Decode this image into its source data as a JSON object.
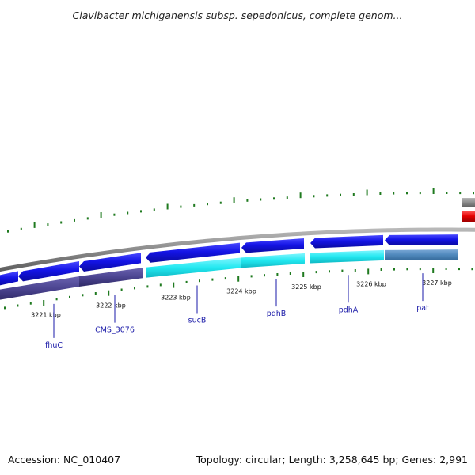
{
  "title": "Clavibacter michiganensis subsp. sepedonicus, complete genom...",
  "footer": {
    "accession": "Accession: NC_010407",
    "summary": "Topology: circular; Length: 3,258,645 bp; Genes: 2,991"
  },
  "colors": {
    "forward_gene": "#1414e6",
    "reverse_highlight": "#22e8f0",
    "reverse_dark": "#4b4490",
    "reverse_steel": "#4f88bc",
    "backbone": "#8a8a8a",
    "tick": "#1f7a1f",
    "label": "#1a1aa8",
    "red_feature": "#e40000"
  },
  "scale": {
    "kbp_labels": [
      "3221 kbp",
      "3222 kbp",
      "3223 kbp",
      "3224 kbp",
      "3225 kbp",
      "3226 kbp",
      "3227 kbp"
    ]
  },
  "genes": [
    {
      "name": "fhuC"
    },
    {
      "name": "CMS_3076"
    },
    {
      "name": "sucB"
    },
    {
      "name": "pdhB"
    },
    {
      "name": "pdhA"
    },
    {
      "name": "pat"
    }
  ]
}
